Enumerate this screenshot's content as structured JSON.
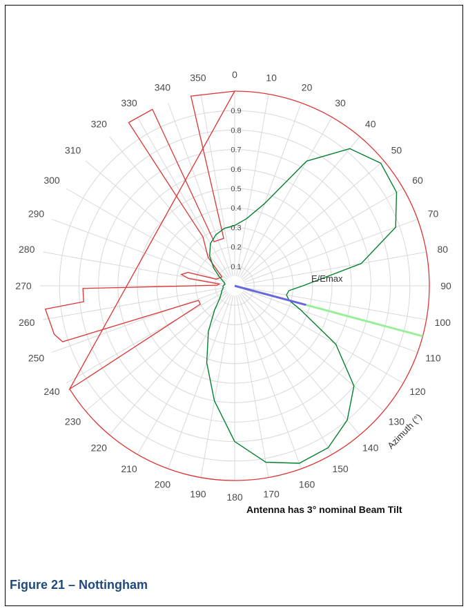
{
  "caption": "Figure 21 – Nottingham",
  "chart_data": {
    "type": "polar",
    "title": "",
    "angle_axis": {
      "label": "Azimuth (°)",
      "ticks": [
        0,
        10,
        20,
        30,
        40,
        50,
        60,
        70,
        80,
        90,
        100,
        110,
        120,
        130,
        140,
        150,
        160,
        170,
        180,
        190,
        200,
        210,
        220,
        230,
        240,
        250,
        260,
        270,
        280,
        290,
        300,
        310,
        320,
        330,
        340,
        350
      ],
      "direction": "clockwise",
      "zero": "top"
    },
    "radial_axis": {
      "label": "E/Emax",
      "ticks": [
        0.1,
        0.2,
        0.3,
        0.4,
        0.5,
        0.6,
        0.7,
        0.8,
        0.9
      ],
      "range": [
        0,
        1
      ]
    },
    "annotation": "Antenna has 3° nominal Beam Tilt",
    "grid": true,
    "series": [
      {
        "name": "",
        "color": "#00802b",
        "points": [
          [
            0,
            0.31
          ],
          [
            10,
            0.35
          ],
          [
            20,
            0.45
          ],
          [
            30,
            0.74
          ],
          [
            40,
            0.92
          ],
          [
            50,
            0.98
          ],
          [
            60,
            0.96
          ],
          [
            70,
            0.88
          ],
          [
            80,
            0.66
          ],
          [
            90,
            0.35
          ],
          [
            95,
            0.28
          ],
          [
            100,
            0.27
          ],
          [
            105,
            0.29
          ],
          [
            110,
            0.36
          ],
          [
            120,
            0.6
          ],
          [
            130,
            0.8
          ],
          [
            140,
            0.9
          ],
          [
            150,
            0.96
          ],
          [
            160,
            0.97
          ],
          [
            170,
            0.92
          ],
          [
            180,
            0.8
          ],
          [
            190,
            0.6
          ],
          [
            200,
            0.42
          ],
          [
            210,
            0.27
          ],
          [
            220,
            0.16
          ],
          [
            230,
            0.1
          ],
          [
            240,
            0.08
          ],
          [
            250,
            0.07
          ],
          [
            260,
            0.06
          ],
          [
            270,
            0.06
          ],
          [
            280,
            0.05
          ],
          [
            290,
            0.06
          ],
          [
            300,
            0.09
          ],
          [
            310,
            0.14
          ],
          [
            320,
            0.2
          ],
          [
            330,
            0.25
          ],
          [
            340,
            0.28
          ],
          [
            350,
            0.3
          ]
        ]
      },
      {
        "name": "",
        "color": "#dd3333",
        "type": "restriction",
        "points": [
          [
            0,
            1
          ],
          [
            347,
            1
          ],
          [
            347,
            0.25
          ],
          [
            335,
            0.25
          ],
          [
            335,
            1
          ],
          [
            327,
            1
          ],
          [
            327,
            0.3
          ],
          [
            317,
            0.2
          ],
          [
            305,
            0.08
          ],
          [
            290,
            0.1
          ],
          [
            286,
            0.25
          ],
          [
            282,
            0.28
          ],
          [
            279,
            0.24
          ],
          [
            277,
            0.08
          ],
          [
            272,
            0.09
          ],
          [
            269,
            0.78
          ],
          [
            264,
            0.78
          ],
          [
            263,
            0.98
          ],
          [
            255,
            0.96
          ],
          [
            252,
            0.93
          ],
          [
            248,
            0.2
          ],
          [
            242,
            0.2
          ],
          [
            238,
            0.92
          ],
          [
            238,
            1
          ],
          [
            0,
            1
          ]
        ]
      }
    ],
    "bearing_line": {
      "azimuth": 105,
      "inner_color": "#6666dd",
      "outer_color": "#99ee99",
      "break": 0.38
    }
  }
}
